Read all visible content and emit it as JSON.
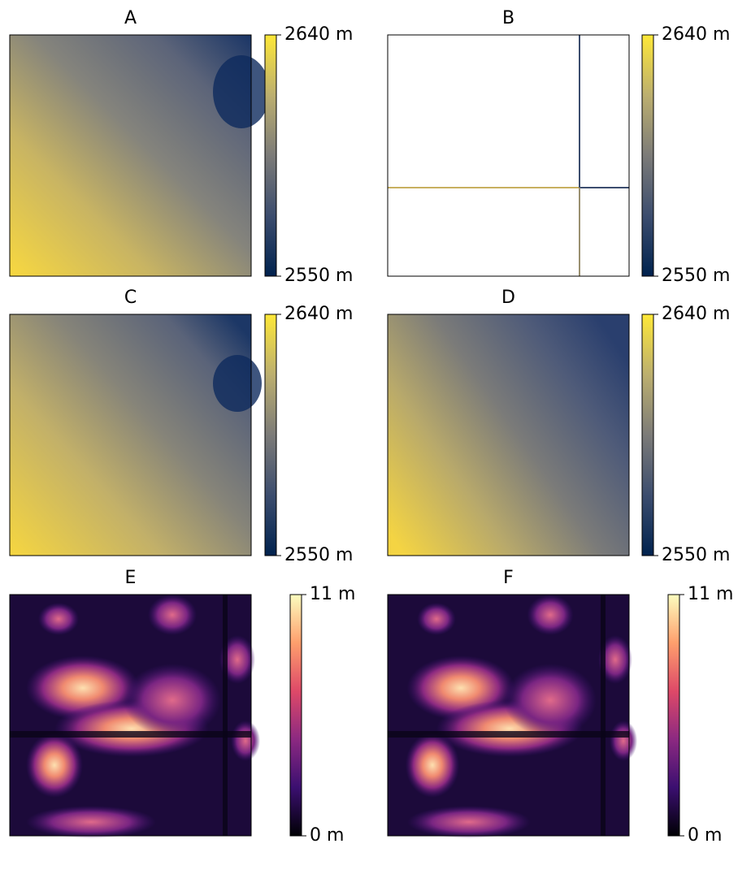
{
  "panels": [
    {
      "title": "A",
      "colormap": "cividis",
      "colorbar": {
        "lim": [
          2550,
          2640
        ],
        "ticks": [
          {
            "value": 2640,
            "label": "2640 m"
          },
          {
            "value": 2550,
            "label": "2550 m"
          }
        ]
      }
    },
    {
      "title": "B",
      "colormap": "cividis",
      "colorbar": {
        "lim": [
          2550,
          2640
        ],
        "ticks": [
          {
            "value": 2640,
            "label": "2640 m"
          },
          {
            "value": 2550,
            "label": "2550 m"
          }
        ]
      }
    },
    {
      "title": "C",
      "colormap": "cividis",
      "colorbar": {
        "lim": [
          2550,
          2640
        ],
        "ticks": [
          {
            "value": 2640,
            "label": "2640 m"
          },
          {
            "value": 2550,
            "label": "2550 m"
          }
        ]
      }
    },
    {
      "title": "D",
      "colormap": "cividis",
      "colorbar": {
        "lim": [
          2550,
          2640
        ],
        "ticks": [
          {
            "value": 2640,
            "label": "2640 m"
          },
          {
            "value": 2550,
            "label": "2550 m"
          }
        ]
      }
    },
    {
      "title": "E",
      "colormap": "magma",
      "colorbar": {
        "lim": [
          0,
          11
        ],
        "ticks": [
          {
            "value": 11,
            "label": "11 m"
          },
          {
            "value": 0,
            "label": "0 m"
          }
        ]
      }
    },
    {
      "title": "F",
      "colormap": "magma",
      "colorbar": {
        "lim": [
          0,
          11
        ],
        "ticks": [
          {
            "value": 11,
            "label": "11 m"
          },
          {
            "value": 0,
            "label": "0 m"
          }
        ]
      }
    }
  ]
}
